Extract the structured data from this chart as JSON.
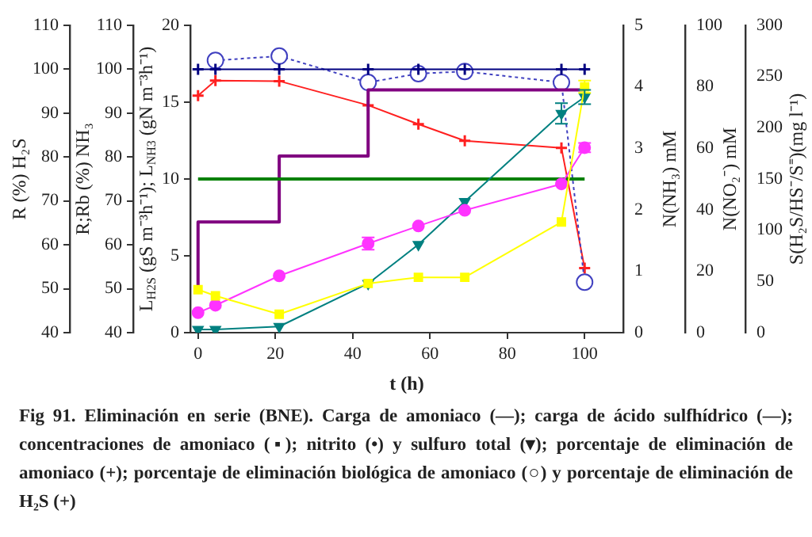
{
  "chart_data": [
    {
      "type": "line",
      "x": [
        0,
        4.5,
        21,
        44,
        57,
        69,
        94,
        100
      ],
      "xlabel": "t (h)",
      "xlim": [
        -2,
        110
      ],
      "xticks": [
        0,
        20,
        40,
        60,
        80,
        100
      ],
      "ylabel": "L$_{H2S}$ (gS m⁻³h⁻¹); L$_{NH3}$ (gN m⁻³h⁻¹)",
      "ylim": [
        0,
        20
      ],
      "yticks": [
        0,
        5,
        10,
        15,
        20
      ],
      "y2label": "R;Rb (%) NH₃",
      "y2lim": [
        40,
        110
      ],
      "y2ticks": [
        40,
        50,
        60,
        70,
        80,
        90,
        100,
        110
      ],
      "y3label": "R (%) H₂S",
      "y3lim": [
        40,
        110
      ],
      "y3ticks": [
        40,
        50,
        60,
        70,
        80,
        90,
        100,
        110
      ],
      "grid": false,
      "legend": false,
      "series": [
        {
          "x": [
            0,
            100
          ],
          "values": [
            10,
            10
          ],
          "color": "#008000",
          "marker": "none"
        },
        {
          "type": "step",
          "x": [
            0,
            21,
            44,
            94,
            100
          ],
          "values": [
            2.8,
            7.2,
            11.5,
            15.8,
            15.8
          ],
          "color": "#800080",
          "marker": "none"
        },
        {
          "values": [
            100,
            100,
            100,
            100,
            100,
            100,
            100,
            100
          ],
          "color": "#000080",
          "marker": "cross",
          "axis": "y2"
        },
        {
          "values": [
            null,
            102,
            103,
            97,
            99,
            99.5,
            97,
            51.5
          ],
          "color": "#4040c0",
          "marker": "circle",
          "line_style": "dotted",
          "axis": "y2"
        },
        {
          "values": [
            94,
            97.4,
            97.3,
            91.8,
            87.5,
            83.7,
            82.1,
            54.7
          ],
          "color": "#ff2020",
          "marker": "cross",
          "axis": "y3"
        }
      ],
      "annotations": [
        "Fig 91. Eliminación en serie (BNE). Carga de amoniaco (—); carga de ácido sulfhídrico (—); concentraciones de amoniaco (▪); nitrito (•) y sulfuro total (▾); porcentaje de eliminación de amoniaco (+); porcentaje de eliminación biológica de amoniaco (○) y porcentaje de eliminación de H₂S (+)"
      ]
    },
    {
      "type": "line",
      "x": [
        0,
        4.5,
        21,
        44,
        57,
        69,
        94,
        100
      ],
      "xlim": [
        -2,
        110
      ],
      "xticks": [
        0,
        20,
        40,
        60,
        80,
        100
      ],
      "tick_labels": "y",
      "ylabel": "N(NH₃) mM",
      "ylim": [
        0,
        5
      ],
      "yticks": [
        0,
        1,
        2,
        3,
        4,
        5
      ],
      "y2label": "N(NO₂⁻) mM",
      "y2lim": [
        0,
        100
      ],
      "y2ticks": [
        0,
        20,
        40,
        60,
        80,
        100
      ],
      "y3label": "S(H₂S/HS⁻/S⁼)(mg l⁻¹)",
      "y3lim": [
        0,
        300
      ],
      "y3ticks": [
        0,
        50,
        100,
        150,
        200,
        250,
        300
      ],
      "grid": false,
      "legend": false,
      "series": [
        {
          "values": [
            0.7,
            0.6,
            0.3,
            0.8,
            0.9,
            0.9,
            1.8,
            4.0
          ],
          "color": "#ffff00",
          "marker": "square",
          "errors": [
            null,
            null,
            null,
            null,
            null,
            null,
            null,
            0.1
          ]
        },
        {
          "values": [
            6.5,
            8.9,
            18.5,
            29,
            34.7,
            39.8,
            48.4,
            60.2
          ],
          "color": "#ff33ff",
          "marker": "circle",
          "axis": "y2",
          "errors": [
            null,
            null,
            null,
            2,
            null,
            null,
            null,
            1.5
          ]
        },
        {
          "values": [
            3,
            3,
            6,
            48,
            86,
            128,
            214,
            230
          ],
          "color": "#008080",
          "marker": "triangle",
          "axis": "y3",
          "errors": [
            null,
            null,
            null,
            null,
            null,
            null,
            10,
            7
          ]
        }
      ]
    }
  ]
}
